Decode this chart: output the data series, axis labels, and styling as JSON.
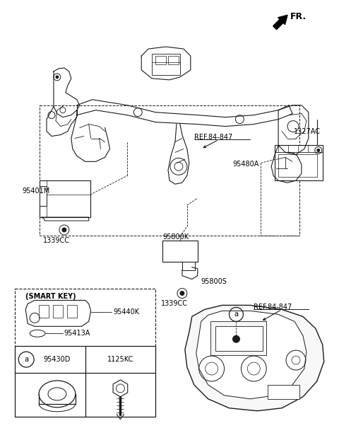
{
  "bg_color": "#ffffff",
  "line_color": "#1a1a1a",
  "fig_width": 4.8,
  "fig_height": 6.12,
  "dpi": 100,
  "labels": {
    "fr": "FR.",
    "ref847_top": "REF.84-847",
    "ref847_bot": "REF.84-847",
    "p95401M": "95401M",
    "p1339CC_L": "1339CC",
    "p95480A": "95480A",
    "p1327AC": "1327AC",
    "p95800K": "95800K",
    "p95800S": "95800S",
    "p1339CC_C": "1339CC",
    "smart_key": "(SMART KEY)",
    "p95440K": "95440K",
    "p95413A": "95413A",
    "p95430D": "95430D",
    "p1125KC": "1125KC",
    "a_label": "a"
  }
}
